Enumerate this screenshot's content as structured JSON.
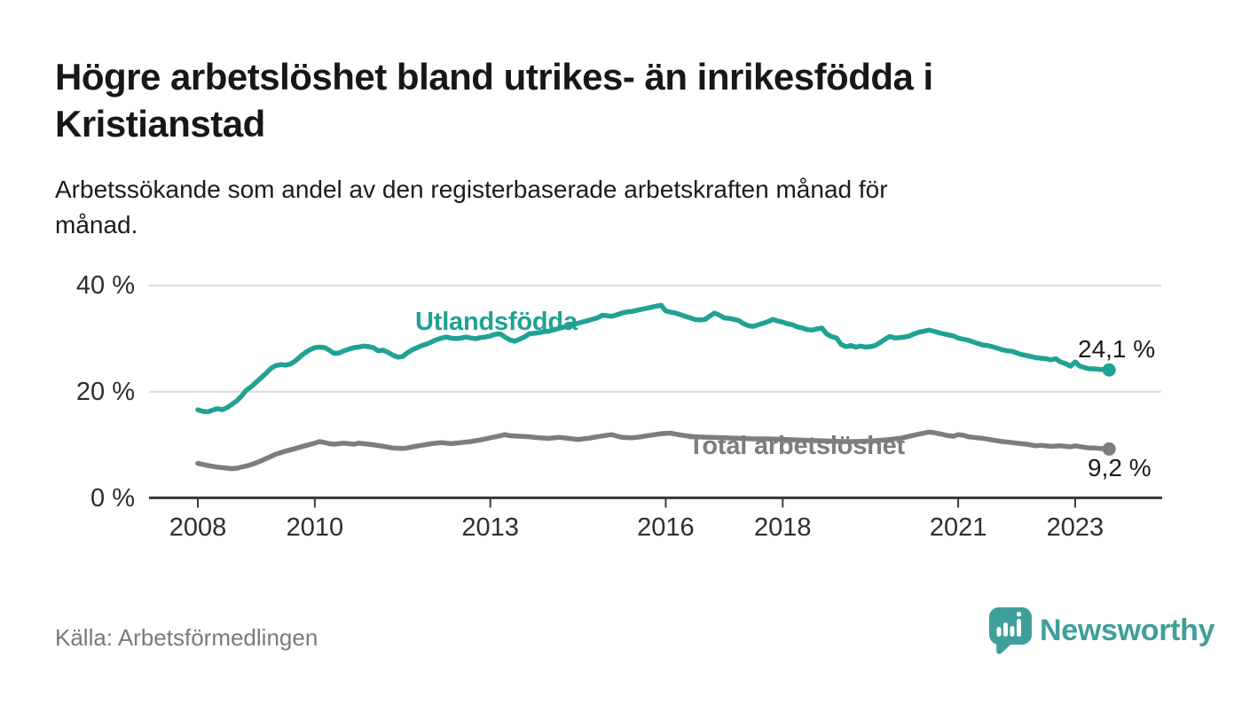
{
  "header": {
    "title": "Högre arbetslöshet bland utrikes- än inrikesfödda i\nKristianstad",
    "subtitle": "Arbetssökande som andel av den registerbaserade arbetskraften månad för\nmånad."
  },
  "footer": {
    "source": "Källa: Arbetsförmedlingen",
    "logo_text": "Newsworthy"
  },
  "colors": {
    "series_foreign": "#1fa294",
    "series_total": "#7d7d7d",
    "grid": "#dcdcdc",
    "axis": "#3b3b3b",
    "text": "#1a1a1a",
    "muted_text": "#7a7a7a",
    "logo_teal": "#3f9f9a",
    "background": "#ffffff"
  },
  "chart_data": {
    "type": "line",
    "unit": "%",
    "ylim": [
      0,
      40
    ],
    "xlim": [
      2007.2,
      2024.5
    ],
    "grid": "horizontal",
    "legend_position": "inline-labels",
    "y_ticks": [
      {
        "value": 0,
        "label": "0 %"
      },
      {
        "value": 20,
        "label": "20 %"
      },
      {
        "value": 40,
        "label": "40 %"
      }
    ],
    "x_ticks": [
      {
        "year": 2008,
        "label": "2008"
      },
      {
        "year": 2010,
        "label": "2010"
      },
      {
        "year": 2013,
        "label": "2013"
      },
      {
        "year": 2016,
        "label": "2016"
      },
      {
        "year": 2018,
        "label": "2018"
      },
      {
        "year": 2021,
        "label": "2021"
      },
      {
        "year": 2023,
        "label": "2023"
      }
    ],
    "series": [
      {
        "name": "Utlandsfödda",
        "color": "#1fa294",
        "end_label": "24,1 %",
        "end_value": 24.1,
        "points": [
          [
            2008.0,
            16.6
          ],
          [
            2008.08,
            16.3
          ],
          [
            2008.17,
            16.2
          ],
          [
            2008.25,
            16.5
          ],
          [
            2008.33,
            16.8
          ],
          [
            2008.42,
            16.6
          ],
          [
            2008.5,
            17.0
          ],
          [
            2008.58,
            17.6
          ],
          [
            2008.67,
            18.3
          ],
          [
            2008.75,
            19.2
          ],
          [
            2008.83,
            20.3
          ],
          [
            2008.92,
            21.0
          ],
          [
            2009.0,
            21.8
          ],
          [
            2009.08,
            22.6
          ],
          [
            2009.17,
            23.5
          ],
          [
            2009.25,
            24.4
          ],
          [
            2009.33,
            24.9
          ],
          [
            2009.42,
            25.1
          ],
          [
            2009.5,
            25.0
          ],
          [
            2009.58,
            25.2
          ],
          [
            2009.67,
            25.8
          ],
          [
            2009.75,
            26.6
          ],
          [
            2009.83,
            27.3
          ],
          [
            2009.92,
            27.9
          ],
          [
            2010.0,
            28.3
          ],
          [
            2010.08,
            28.4
          ],
          [
            2010.17,
            28.3
          ],
          [
            2010.25,
            27.8
          ],
          [
            2010.33,
            27.2
          ],
          [
            2010.42,
            27.3
          ],
          [
            2010.5,
            27.7
          ],
          [
            2010.58,
            28.0
          ],
          [
            2010.67,
            28.3
          ],
          [
            2010.75,
            28.4
          ],
          [
            2010.83,
            28.6
          ],
          [
            2010.92,
            28.5
          ],
          [
            2011.0,
            28.3
          ],
          [
            2011.08,
            27.7
          ],
          [
            2011.17,
            27.8
          ],
          [
            2011.25,
            27.4
          ],
          [
            2011.33,
            26.9
          ],
          [
            2011.42,
            26.5
          ],
          [
            2011.5,
            26.6
          ],
          [
            2011.58,
            27.3
          ],
          [
            2011.67,
            27.9
          ],
          [
            2011.75,
            28.3
          ],
          [
            2011.83,
            28.7
          ],
          [
            2011.92,
            29.0
          ],
          [
            2012.0,
            29.4
          ],
          [
            2012.08,
            29.8
          ],
          [
            2012.17,
            30.1
          ],
          [
            2012.25,
            30.3
          ],
          [
            2012.33,
            30.1
          ],
          [
            2012.42,
            30.0
          ],
          [
            2012.5,
            30.1
          ],
          [
            2012.58,
            30.3
          ],
          [
            2012.67,
            30.1
          ],
          [
            2012.75,
            30.0
          ],
          [
            2012.83,
            30.2
          ],
          [
            2012.92,
            30.3
          ],
          [
            2013.0,
            30.5
          ],
          [
            2013.08,
            30.8
          ],
          [
            2013.17,
            30.9
          ],
          [
            2013.25,
            30.3
          ],
          [
            2013.33,
            29.8
          ],
          [
            2013.42,
            29.5
          ],
          [
            2013.5,
            29.9
          ],
          [
            2013.58,
            30.3
          ],
          [
            2013.67,
            30.9
          ],
          [
            2013.83,
            31.1
          ],
          [
            2013.92,
            31.3
          ],
          [
            2014.0,
            31.4
          ],
          [
            2014.17,
            31.9
          ],
          [
            2014.33,
            32.4
          ],
          [
            2014.5,
            32.9
          ],
          [
            2014.67,
            33.4
          ],
          [
            2014.83,
            33.9
          ],
          [
            2014.92,
            34.4
          ],
          [
            2015.0,
            34.3
          ],
          [
            2015.08,
            34.2
          ],
          [
            2015.17,
            34.5
          ],
          [
            2015.25,
            34.8
          ],
          [
            2015.33,
            35.0
          ],
          [
            2015.42,
            35.1
          ],
          [
            2015.5,
            35.3
          ],
          [
            2015.58,
            35.5
          ],
          [
            2015.67,
            35.7
          ],
          [
            2015.75,
            35.9
          ],
          [
            2015.83,
            36.1
          ],
          [
            2015.92,
            36.3
          ],
          [
            2016.0,
            35.2
          ],
          [
            2016.08,
            35.0
          ],
          [
            2016.17,
            34.8
          ],
          [
            2016.25,
            34.5
          ],
          [
            2016.33,
            34.2
          ],
          [
            2016.42,
            33.9
          ],
          [
            2016.5,
            33.6
          ],
          [
            2016.58,
            33.5
          ],
          [
            2016.67,
            33.6
          ],
          [
            2016.75,
            34.2
          ],
          [
            2016.83,
            34.8
          ],
          [
            2016.92,
            34.4
          ],
          [
            2017.0,
            33.9
          ],
          [
            2017.08,
            33.8
          ],
          [
            2017.17,
            33.6
          ],
          [
            2017.25,
            33.4
          ],
          [
            2017.33,
            32.8
          ],
          [
            2017.42,
            32.4
          ],
          [
            2017.5,
            32.3
          ],
          [
            2017.58,
            32.6
          ],
          [
            2017.67,
            32.9
          ],
          [
            2017.75,
            33.2
          ],
          [
            2017.83,
            33.6
          ],
          [
            2017.92,
            33.3
          ],
          [
            2018.0,
            33.1
          ],
          [
            2018.08,
            32.8
          ],
          [
            2018.17,
            32.6
          ],
          [
            2018.25,
            32.2
          ],
          [
            2018.33,
            32.0
          ],
          [
            2018.42,
            31.7
          ],
          [
            2018.5,
            31.6
          ],
          [
            2018.58,
            31.8
          ],
          [
            2018.67,
            32.0
          ],
          [
            2018.75,
            30.9
          ],
          [
            2018.83,
            30.4
          ],
          [
            2018.92,
            30.1
          ],
          [
            2019.0,
            28.9
          ],
          [
            2019.08,
            28.5
          ],
          [
            2019.17,
            28.7
          ],
          [
            2019.25,
            28.4
          ],
          [
            2019.33,
            28.6
          ],
          [
            2019.42,
            28.4
          ],
          [
            2019.5,
            28.5
          ],
          [
            2019.58,
            28.7
          ],
          [
            2019.67,
            29.3
          ],
          [
            2019.75,
            29.9
          ],
          [
            2019.83,
            30.4
          ],
          [
            2019.92,
            30.1
          ],
          [
            2020.0,
            30.2
          ],
          [
            2020.08,
            30.3
          ],
          [
            2020.17,
            30.5
          ],
          [
            2020.25,
            30.9
          ],
          [
            2020.33,
            31.2
          ],
          [
            2020.42,
            31.4
          ],
          [
            2020.5,
            31.6
          ],
          [
            2020.58,
            31.4
          ],
          [
            2020.67,
            31.1
          ],
          [
            2020.75,
            30.9
          ],
          [
            2020.83,
            30.7
          ],
          [
            2020.92,
            30.5
          ],
          [
            2021.0,
            30.1
          ],
          [
            2021.08,
            29.9
          ],
          [
            2021.17,
            29.7
          ],
          [
            2021.25,
            29.4
          ],
          [
            2021.33,
            29.1
          ],
          [
            2021.42,
            28.8
          ],
          [
            2021.5,
            28.7
          ],
          [
            2021.58,
            28.5
          ],
          [
            2021.67,
            28.2
          ],
          [
            2021.75,
            27.9
          ],
          [
            2021.83,
            27.7
          ],
          [
            2021.92,
            27.6
          ],
          [
            2022.0,
            27.3
          ],
          [
            2022.08,
            27.0
          ],
          [
            2022.17,
            26.8
          ],
          [
            2022.25,
            26.6
          ],
          [
            2022.33,
            26.4
          ],
          [
            2022.42,
            26.3
          ],
          [
            2022.5,
            26.2
          ],
          [
            2022.58,
            26.0
          ],
          [
            2022.67,
            26.2
          ],
          [
            2022.75,
            25.6
          ],
          [
            2022.83,
            25.3
          ],
          [
            2022.92,
            24.8
          ],
          [
            2023.0,
            25.6
          ],
          [
            2023.08,
            24.8
          ],
          [
            2023.17,
            24.5
          ],
          [
            2023.25,
            24.3
          ],
          [
            2023.33,
            24.3
          ],
          [
            2023.42,
            24.2
          ],
          [
            2023.5,
            24.15
          ],
          [
            2023.58,
            24.1
          ]
        ]
      },
      {
        "name": "Total arbetslöshet",
        "color": "#7d7d7d",
        "end_label": "9,2 %",
        "end_value": 9.2,
        "points": [
          [
            2008.0,
            6.5
          ],
          [
            2008.17,
            6.1
          ],
          [
            2008.33,
            5.8
          ],
          [
            2008.5,
            5.6
          ],
          [
            2008.58,
            5.5
          ],
          [
            2008.67,
            5.6
          ],
          [
            2008.83,
            6.0
          ],
          [
            2008.92,
            6.3
          ],
          [
            2009.0,
            6.6
          ],
          [
            2009.17,
            7.4
          ],
          [
            2009.33,
            8.2
          ],
          [
            2009.5,
            8.8
          ],
          [
            2009.67,
            9.3
          ],
          [
            2009.83,
            9.8
          ],
          [
            2010.0,
            10.3
          ],
          [
            2010.08,
            10.6
          ],
          [
            2010.17,
            10.4
          ],
          [
            2010.25,
            10.2
          ],
          [
            2010.33,
            10.1
          ],
          [
            2010.5,
            10.3
          ],
          [
            2010.58,
            10.2
          ],
          [
            2010.67,
            10.1
          ],
          [
            2010.75,
            10.3
          ],
          [
            2010.83,
            10.2
          ],
          [
            2011.0,
            10.0
          ],
          [
            2011.17,
            9.7
          ],
          [
            2011.33,
            9.4
          ],
          [
            2011.5,
            9.3
          ],
          [
            2011.58,
            9.4
          ],
          [
            2011.67,
            9.6
          ],
          [
            2011.83,
            9.9
          ],
          [
            2012.0,
            10.2
          ],
          [
            2012.17,
            10.4
          ],
          [
            2012.25,
            10.3
          ],
          [
            2012.33,
            10.2
          ],
          [
            2012.5,
            10.4
          ],
          [
            2012.67,
            10.6
          ],
          [
            2012.83,
            10.9
          ],
          [
            2013.0,
            11.3
          ],
          [
            2013.17,
            11.7
          ],
          [
            2013.25,
            11.9
          ],
          [
            2013.33,
            11.7
          ],
          [
            2013.5,
            11.6
          ],
          [
            2013.67,
            11.5
          ],
          [
            2013.83,
            11.3
          ],
          [
            2014.0,
            11.2
          ],
          [
            2014.17,
            11.4
          ],
          [
            2014.33,
            11.2
          ],
          [
            2014.5,
            11.0
          ],
          [
            2014.67,
            11.2
          ],
          [
            2014.83,
            11.5
          ],
          [
            2015.0,
            11.8
          ],
          [
            2015.08,
            11.9
          ],
          [
            2015.17,
            11.6
          ],
          [
            2015.25,
            11.4
          ],
          [
            2015.42,
            11.3
          ],
          [
            2015.58,
            11.5
          ],
          [
            2015.75,
            11.8
          ],
          [
            2015.92,
            12.1
          ],
          [
            2016.08,
            12.2
          ],
          [
            2016.17,
            12.0
          ],
          [
            2016.33,
            11.7
          ],
          [
            2016.5,
            11.5
          ],
          [
            2016.75,
            11.4
          ],
          [
            2017.0,
            11.3
          ],
          [
            2017.25,
            11.2
          ],
          [
            2017.5,
            11.1
          ],
          [
            2017.75,
            11.1
          ],
          [
            2018.0,
            11.0
          ],
          [
            2018.25,
            10.9
          ],
          [
            2018.5,
            10.8
          ],
          [
            2018.75,
            10.7
          ],
          [
            2019.0,
            10.6
          ],
          [
            2019.25,
            10.6
          ],
          [
            2019.5,
            10.7
          ],
          [
            2019.75,
            10.9
          ],
          [
            2020.0,
            11.2
          ],
          [
            2020.17,
            11.6
          ],
          [
            2020.33,
            12.0
          ],
          [
            2020.5,
            12.4
          ],
          [
            2020.58,
            12.3
          ],
          [
            2020.67,
            12.1
          ],
          [
            2020.75,
            11.9
          ],
          [
            2020.83,
            11.7
          ],
          [
            2020.92,
            11.6
          ],
          [
            2021.0,
            11.9
          ],
          [
            2021.08,
            11.8
          ],
          [
            2021.17,
            11.5
          ],
          [
            2021.25,
            11.4
          ],
          [
            2021.42,
            11.2
          ],
          [
            2021.58,
            10.9
          ],
          [
            2021.75,
            10.6
          ],
          [
            2021.92,
            10.4
          ],
          [
            2022.0,
            10.3
          ],
          [
            2022.17,
            10.1
          ],
          [
            2022.33,
            9.8
          ],
          [
            2022.42,
            9.9
          ],
          [
            2022.58,
            9.7
          ],
          [
            2022.75,
            9.8
          ],
          [
            2022.92,
            9.6
          ],
          [
            2023.0,
            9.8
          ],
          [
            2023.17,
            9.5
          ],
          [
            2023.25,
            9.4
          ],
          [
            2023.33,
            9.4
          ],
          [
            2023.42,
            9.3
          ],
          [
            2023.5,
            9.25
          ],
          [
            2023.58,
            9.2
          ]
        ]
      }
    ]
  }
}
